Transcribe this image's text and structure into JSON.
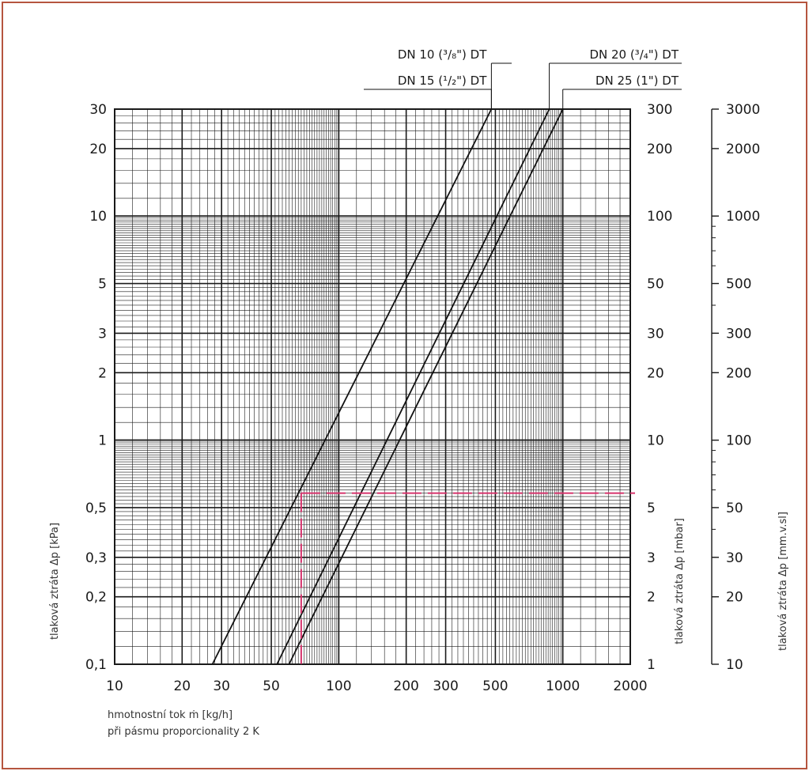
{
  "chart_data": {
    "type": "line",
    "log_x": true,
    "log_y": true,
    "xlim": [
      10,
      2000
    ],
    "ylim": [
      0.1,
      30
    ],
    "x_ticks": [
      {
        "v": 10,
        "t": "10"
      },
      {
        "v": 20,
        "t": "20"
      },
      {
        "v": 30,
        "t": "30"
      },
      {
        "v": 50,
        "t": "50"
      },
      {
        "v": 100,
        "t": "100"
      },
      {
        "v": 200,
        "t": "200"
      },
      {
        "v": 300,
        "t": "300"
      },
      {
        "v": 500,
        "t": "500"
      },
      {
        "v": 1000,
        "t": "1000"
      },
      {
        "v": 2000,
        "t": "2000"
      }
    ],
    "y_ticks_left": [
      {
        "v": 0.1,
        "t": "0,1"
      },
      {
        "v": 0.2,
        "t": "0,2"
      },
      {
        "v": 0.3,
        "t": "0,3"
      },
      {
        "v": 0.5,
        "t": "0,5"
      },
      {
        "v": 1,
        "t": "1"
      },
      {
        "v": 2,
        "t": "2"
      },
      {
        "v": 3,
        "t": "3"
      },
      {
        "v": 5,
        "t": "5"
      },
      {
        "v": 10,
        "t": "10"
      },
      {
        "v": 20,
        "t": "20"
      },
      {
        "v": 30,
        "t": "30"
      }
    ],
    "y_ticks_mbar": [
      {
        "v": 0.1,
        "t": "1"
      },
      {
        "v": 0.2,
        "t": "2"
      },
      {
        "v": 0.3,
        "t": "3"
      },
      {
        "v": 0.5,
        "t": "5"
      },
      {
        "v": 1,
        "t": "10"
      },
      {
        "v": 2,
        "t": "20"
      },
      {
        "v": 3,
        "t": "30"
      },
      {
        "v": 5,
        "t": "50"
      },
      {
        "v": 10,
        "t": "100"
      },
      {
        "v": 20,
        "t": "200"
      },
      {
        "v": 30,
        "t": "300"
      }
    ],
    "y_ticks_mmvsl": [
      {
        "v": 0.1,
        "t": "10"
      },
      {
        "v": 0.2,
        "t": "20"
      },
      {
        "v": 0.3,
        "t": "30"
      },
      {
        "v": 0.5,
        "t": "50"
      },
      {
        "v": 1,
        "t": "100"
      },
      {
        "v": 2,
        "t": "200"
      },
      {
        "v": 3,
        "t": "300"
      },
      {
        "v": 5,
        "t": "500"
      },
      {
        "v": 10,
        "t": "1000"
      },
      {
        "v": 20,
        "t": "2000"
      },
      {
        "v": 30,
        "t": "3000"
      }
    ],
    "ylabel_kpa": "tlaková ztráta Δp [kPa]",
    "ylabel_mbar": "tlaková ztráta Δp [mbar]",
    "ylabel_mmvsl": "tlaková ztráta Δp [mm.v.sl]",
    "xlabel_line1": "hmotnostní tok ṁ [kg/h]",
    "xlabel_line2": "při pásmu proporcionality 2 K",
    "series": [
      {
        "name": "DN 10 (³/₈\") DT",
        "x": [
          27.3,
          480
        ],
        "y": [
          0.1,
          30
        ],
        "label_row": 1,
        "label_side": "left"
      },
      {
        "name": "DN 15 (¹/₂\") DT",
        "x": [
          27.3,
          480
        ],
        "y": [
          0.1,
          30
        ],
        "label_row": 2,
        "label_side": "left"
      },
      {
        "name": "DN 20 (³/₄\") DT",
        "x": [
          53,
          870
        ],
        "y": [
          0.1,
          30
        ],
        "label_row": 1,
        "label_side": "right"
      },
      {
        "name": "DN 25 (1\") DT",
        "x": [
          60,
          1000
        ],
        "y": [
          0.1,
          30
        ],
        "label_row": 2,
        "label_side": "right"
      }
    ],
    "reading_example": {
      "x": 68,
      "y": 0.58,
      "color": "#d6336c"
    },
    "colors": {
      "frame": "#b5553f",
      "grid": "#1a1a1a",
      "curve": "#111111",
      "dash": "#d6336c"
    }
  }
}
